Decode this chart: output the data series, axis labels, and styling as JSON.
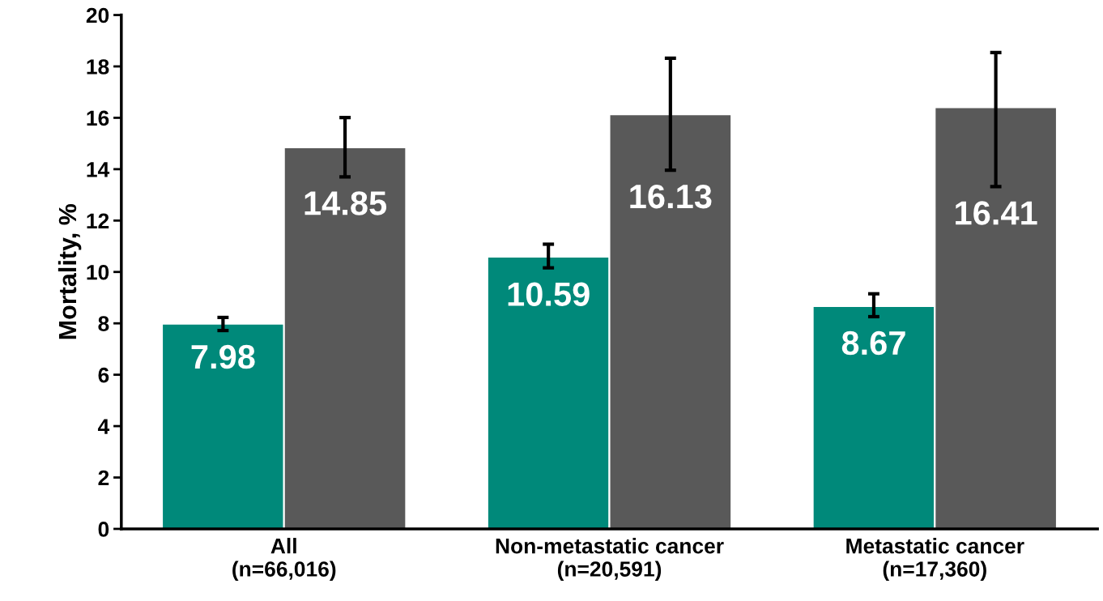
{
  "chart_data": {
    "type": "bar",
    "ylabel": "Mortality, %",
    "categories": [
      "All\n(n=66,016)",
      "Non-metastatic cancer\n(n=20,591)",
      "Metastatic cancer\n(n=17,360)"
    ],
    "series": [
      {
        "color": "#00897a",
        "values": [
          7.98,
          10.59,
          8.67
        ],
        "errors": [
          [
            7.72,
            8.23
          ],
          [
            10.16,
            11.08
          ],
          [
            8.26,
            9.15
          ]
        ]
      },
      {
        "color": "#595959",
        "values": [
          14.85,
          16.13,
          16.41
        ],
        "errors": [
          [
            13.7,
            16.01
          ],
          [
            13.96,
            18.32
          ],
          [
            13.32,
            18.54
          ]
        ]
      }
    ],
    "ylim": [
      0,
      20
    ],
    "yticks": [
      0,
      2,
      4,
      6,
      8,
      10,
      12,
      14,
      16,
      18,
      20
    ],
    "data_labels": true,
    "grid": false,
    "legend": false
  }
}
